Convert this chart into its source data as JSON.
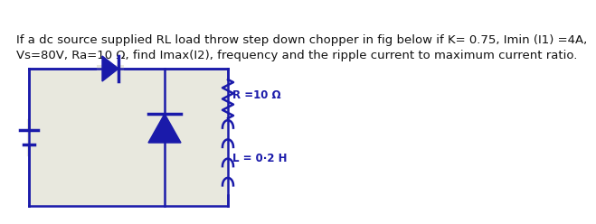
{
  "title_line1": "If a dc source supplied RL load throw step down chopper in fig below if K= 0.75, Imin (I1) =4A,",
  "title_line2": "Vs=80V, Ra=10 Ω, find Imax(I2), frequency and the ripple current to maximum current ratio.",
  "bg_color": "#ffffff",
  "text_color": "#111111",
  "circuit_bg": "#e8e8de",
  "circuit_color": "#1a1aaa",
  "title_fontsize": 9.5,
  "R_label": "R =10 Ω",
  "L_label": "L = 0·2 H"
}
